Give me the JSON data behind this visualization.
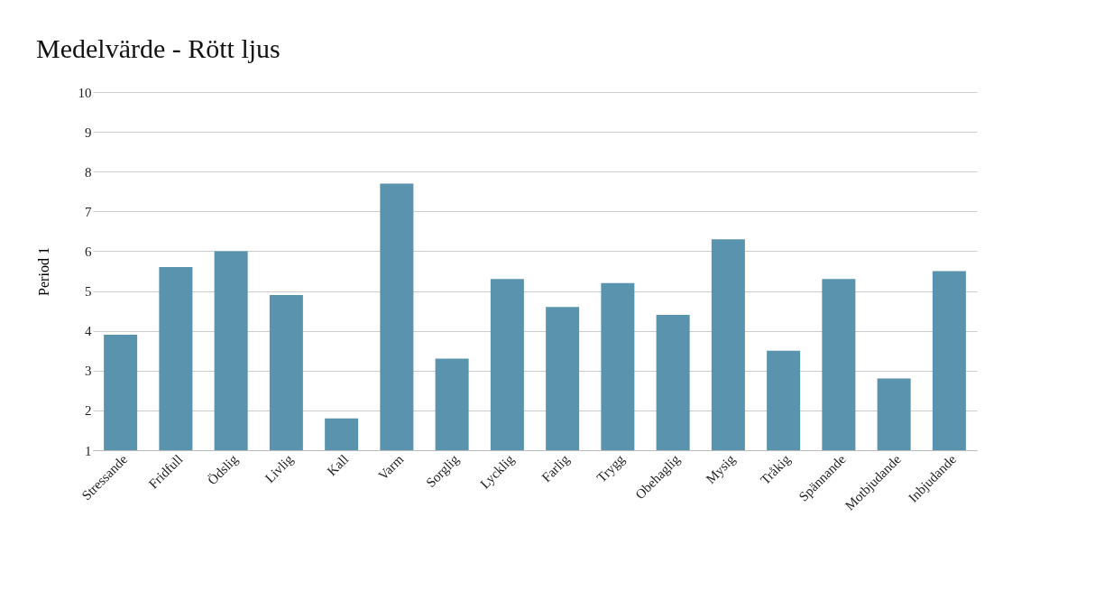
{
  "chart_data": {
    "type": "bar",
    "title": "Medelvärde - Rött ljus",
    "ylabel": "Period 1",
    "categories": [
      "Stressande",
      "Fridfull",
      "Ödslig",
      "Livlig",
      "Kall",
      "Varm",
      "Sorglig",
      "Lycklig",
      "Farlig",
      "Trygg",
      "Obehaglig",
      "Mysig",
      "Tråkig",
      "Spännande",
      "Motbjudande",
      "Inbjudande"
    ],
    "values": [
      3.9,
      5.6,
      6.0,
      4.9,
      1.8,
      7.7,
      3.3,
      5.3,
      4.6,
      5.2,
      4.4,
      6.3,
      3.5,
      5.3,
      2.8,
      5.5
    ],
    "color": "#5a93ae",
    "ylim": [
      1,
      10
    ],
    "yticks": [
      1,
      2,
      3,
      4,
      5,
      6,
      7,
      8,
      9,
      10
    ],
    "grid": "y"
  }
}
